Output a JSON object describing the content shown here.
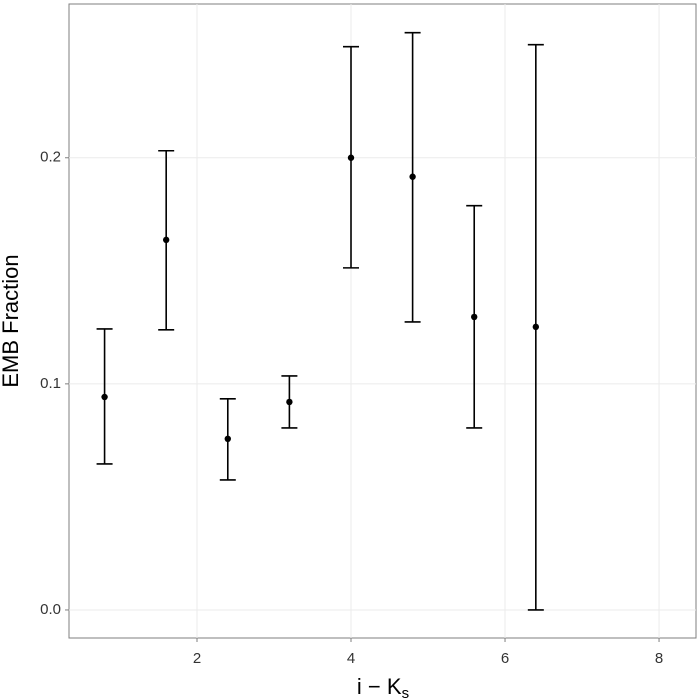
{
  "chart_data": {
    "type": "errorbar",
    "x_label": "i − K",
    "x_label_subscript": "s",
    "y_label": "EMB Fraction",
    "series": [
      {
        "color": "#000000",
        "x": [
          0.8,
          1.6,
          2.4,
          3.2,
          4.0,
          4.8,
          5.6,
          6.4
        ],
        "values": [
          0.0942,
          0.1637,
          0.0757,
          0.092,
          0.2,
          0.1916,
          0.1296,
          0.1252
        ],
        "lower": [
          0.0646,
          0.1239,
          0.0575,
          0.0805,
          0.1513,
          0.1274,
          0.0805,
          0.0
        ],
        "upper": [
          0.1243,
          0.2031,
          0.0934,
          0.1035,
          0.2491,
          0.2553,
          0.1788,
          0.25
        ]
      }
    ],
    "xlim": [
      0.338,
      8.48
    ],
    "xticks": [
      2,
      4,
      6,
      8
    ],
    "ylim": [
      -0.0124,
      0.268
    ],
    "yticks": [
      {
        "value": 0,
        "label": "0.0"
      },
      0.1,
      0.2
    ],
    "grid": true
  }
}
